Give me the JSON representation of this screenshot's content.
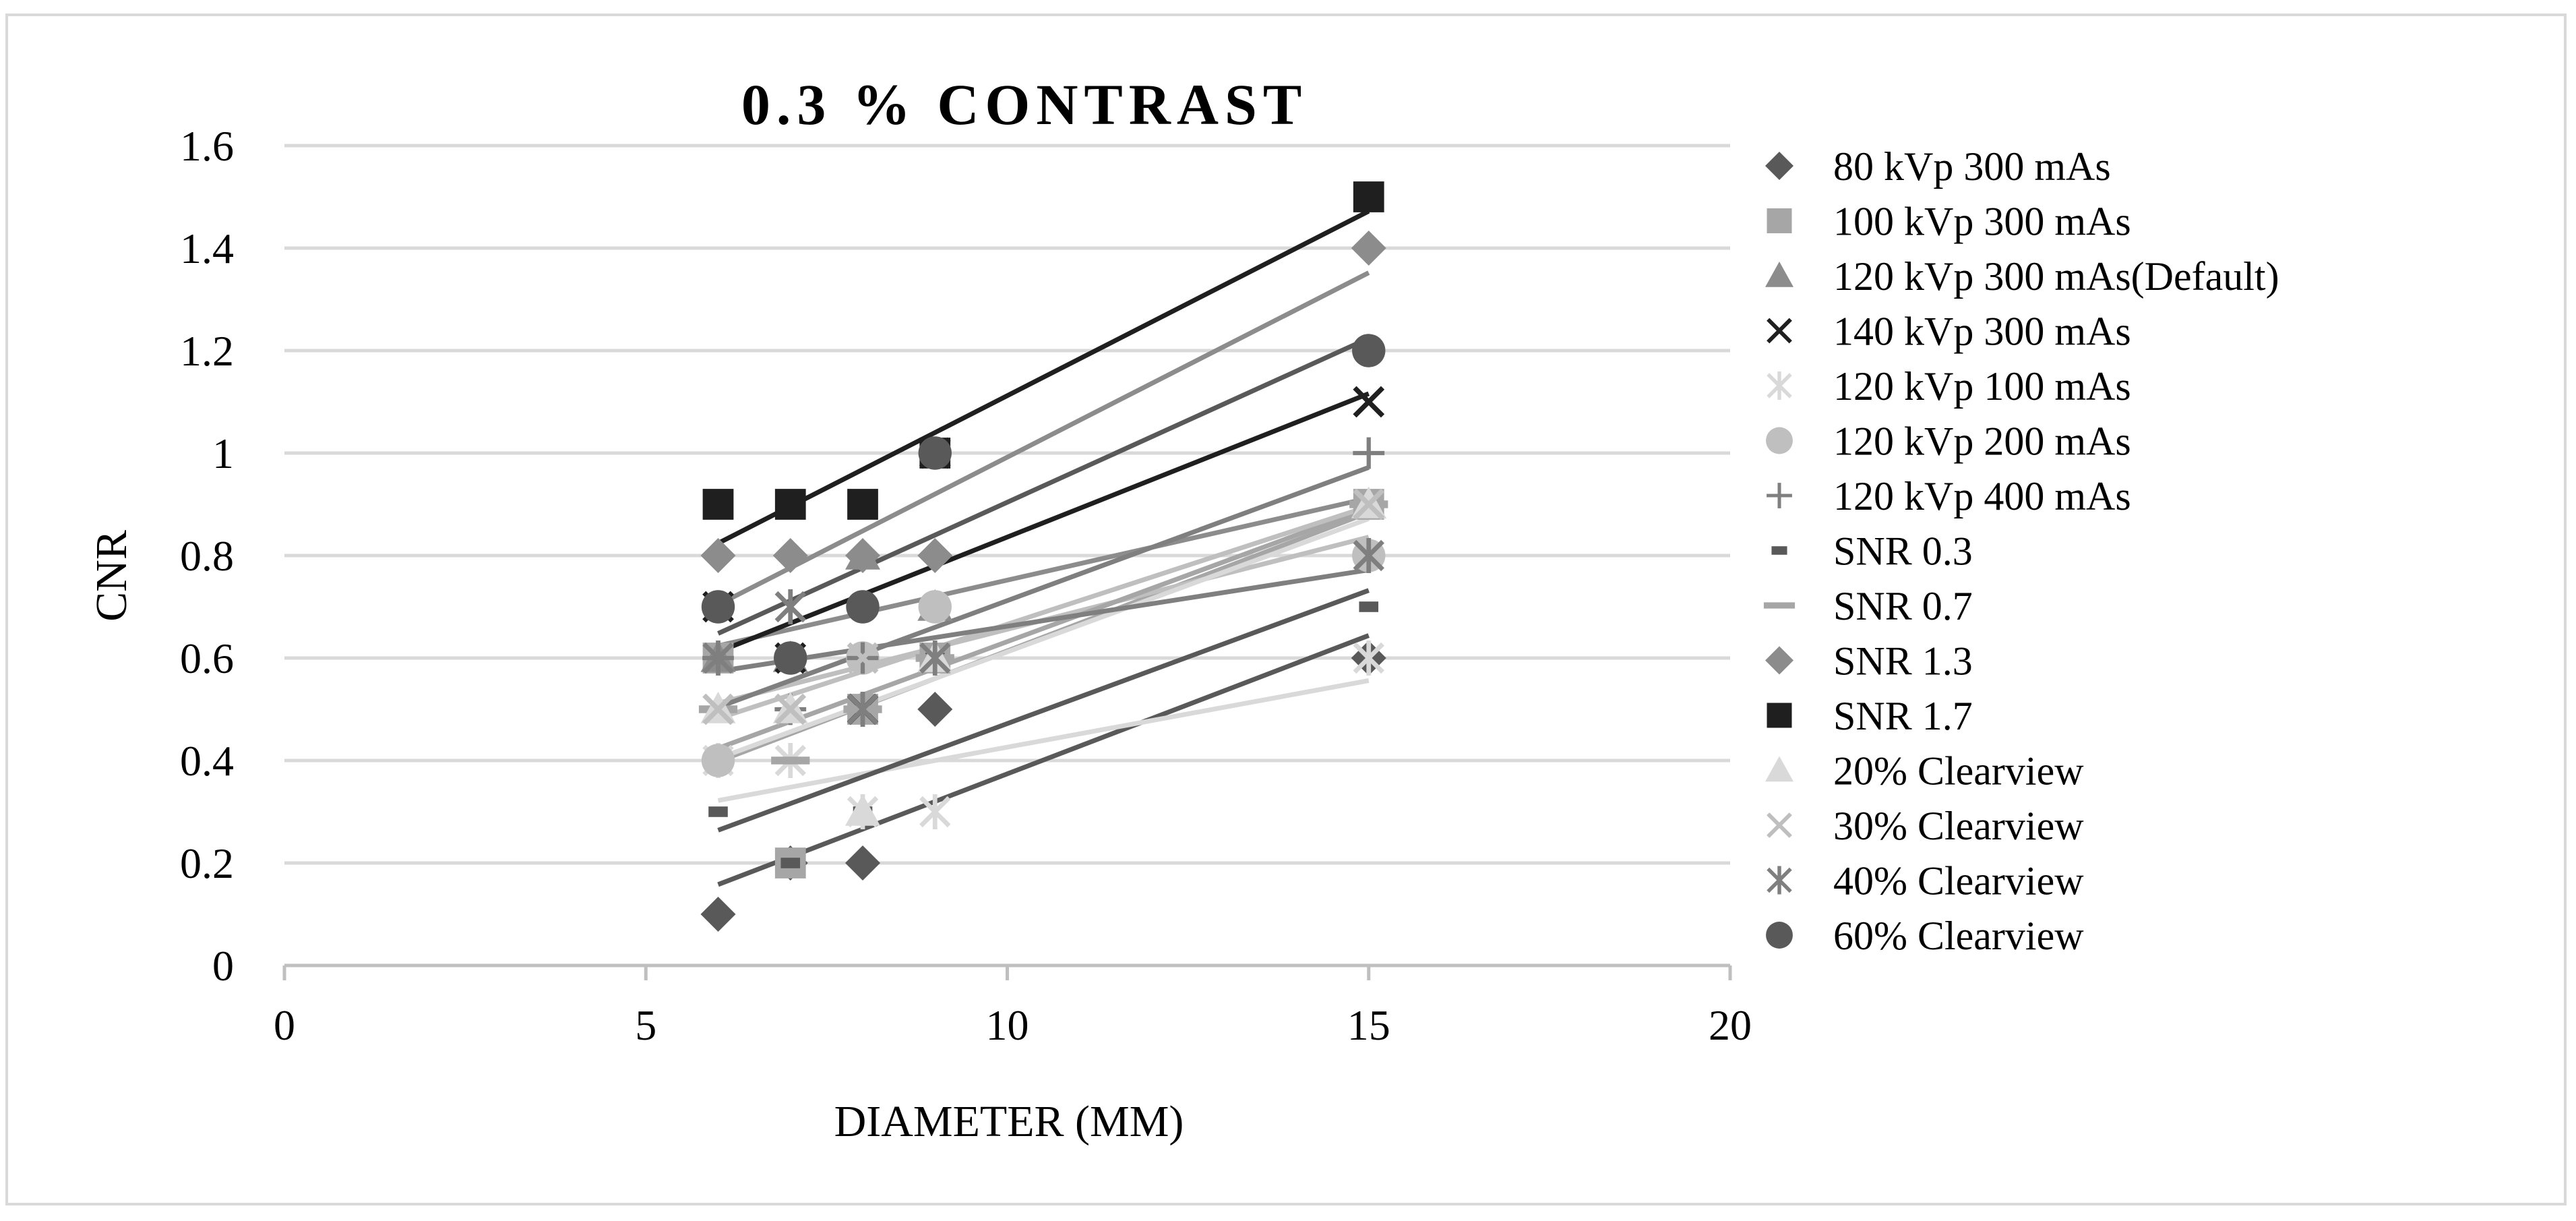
{
  "chart_data": {
    "type": "scatter",
    "title": "0.3 % CONTRAST",
    "xlabel": "DIAMETER (MM)",
    "ylabel": "CNR",
    "xlim": [
      0,
      20
    ],
    "ylim": [
      0,
      1.6
    ],
    "x_ticks": [
      0,
      5,
      10,
      15,
      20
    ],
    "x_tick_labels": [
      "0",
      "5",
      "10",
      "15",
      "20"
    ],
    "y_ticks": [
      0,
      0.2,
      0.4,
      0.6,
      0.8,
      1,
      1.2,
      1.4,
      1.6
    ],
    "y_tick_labels": [
      "0",
      "0.2",
      "0.4",
      "0.6",
      "0.8",
      "1",
      "1.2",
      "1.4",
      "1.6"
    ],
    "grid": "horizontal",
    "legend_position": "right",
    "trendlines": "linear",
    "series": [
      {
        "name": "80 kVp 300 mAs",
        "marker": "diamond",
        "color": "#595959",
        "x": [
          6,
          7,
          8,
          9,
          15
        ],
        "y": [
          0.1,
          0.2,
          0.2,
          0.5,
          0.6
        ]
      },
      {
        "name": "100 kVp 300 mAs",
        "marker": "square",
        "color": "#a6a6a6",
        "x": [
          6,
          7,
          8,
          9,
          15
        ],
        "y": [
          0.6,
          0.2,
          0.5,
          0.6,
          0.9
        ]
      },
      {
        "name": "120 kVp 300 mAs(Default)",
        "marker": "triangle",
        "color": "#8c8c8c",
        "x": [
          6,
          7,
          8,
          9,
          15
        ],
        "y": [
          0.6,
          0.6,
          0.8,
          0.7,
          0.9
        ]
      },
      {
        "name": "140 kVp 300 mAs",
        "marker": "x",
        "color": "#1f1f1f",
        "x": [
          6,
          7,
          8,
          9,
          15
        ],
        "y": [
          0.7,
          0.6,
          0.5,
          1.0,
          1.1
        ]
      },
      {
        "name": "120 kVp 100 mAs",
        "marker": "star",
        "color": "#d9d9d9",
        "x": [
          6,
          7,
          8,
          9,
          15
        ],
        "y": [
          0.4,
          0.4,
          0.3,
          0.3,
          0.6
        ]
      },
      {
        "name": "120 kVp 200 mAs",
        "marker": "circle",
        "color": "#bfbfbf",
        "x": [
          6,
          7,
          8,
          9,
          15
        ],
        "y": [
          0.4,
          0.6,
          0.6,
          0.7,
          0.8
        ]
      },
      {
        "name": "120 kVp 400 mAs",
        "marker": "plus",
        "color": "#7f7f7f",
        "x": [
          6,
          7,
          8,
          9,
          15
        ],
        "y": [
          0.6,
          0.5,
          0.6,
          0.6,
          1.0
        ]
      },
      {
        "name": "SNR 0.3",
        "marker": "short-dash",
        "color": "#595959",
        "x": [
          6,
          7,
          8,
          9,
          15
        ],
        "y": [
          0.3,
          0.2,
          0.3,
          0.6,
          0.7
        ]
      },
      {
        "name": "SNR 0.7",
        "marker": "long-dash",
        "color": "#a6a6a6",
        "x": [
          6,
          7,
          8,
          9,
          15
        ],
        "y": [
          0.5,
          0.4,
          0.5,
          0.6,
          0.9
        ]
      },
      {
        "name": "SNR 1.3",
        "marker": "diamond",
        "color": "#8c8c8c",
        "x": [
          6,
          7,
          8,
          9,
          15
        ],
        "y": [
          0.8,
          0.8,
          0.8,
          0.8,
          1.4
        ]
      },
      {
        "name": "SNR 1.7",
        "marker": "square",
        "color": "#1f1f1f",
        "x": [
          6,
          7,
          8,
          9,
          15
        ],
        "y": [
          0.9,
          0.9,
          0.9,
          1.0,
          1.5
        ]
      },
      {
        "name": "20% Clearview",
        "marker": "triangle",
        "color": "#d9d9d9",
        "x": [
          6,
          7,
          8,
          9,
          15
        ],
        "y": [
          0.5,
          0.5,
          0.3,
          0.6,
          0.9
        ]
      },
      {
        "name": "30% Clearview",
        "marker": "x",
        "color": "#bfbfbf",
        "x": [
          6,
          7,
          8,
          9,
          15
        ],
        "y": [
          0.5,
          0.5,
          0.6,
          0.6,
          0.9
        ]
      },
      {
        "name": "40% Clearview",
        "marker": "star",
        "color": "#7f7f7f",
        "x": [
          6,
          7,
          8,
          9,
          15
        ],
        "y": [
          0.6,
          0.7,
          0.5,
          0.6,
          0.8
        ]
      },
      {
        "name": "60% Clearview",
        "marker": "circle",
        "color": "#595959",
        "x": [
          6,
          7,
          8,
          9,
          15
        ],
        "y": [
          0.7,
          0.6,
          0.7,
          1.0,
          1.2
        ]
      }
    ]
  }
}
